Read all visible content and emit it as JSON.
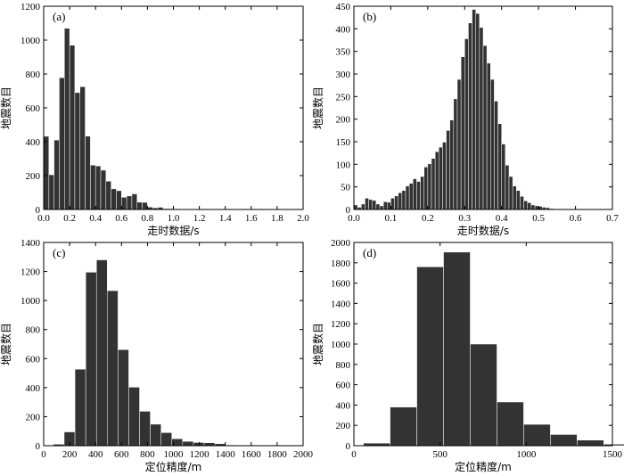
{
  "chart_data": [
    {
      "type": "bar",
      "panel_label": "(a)",
      "xlabel": "走时数据/s",
      "ylabel": "地震数目",
      "xlim": [
        0,
        2.0
      ],
      "ylim": [
        0,
        1200
      ],
      "xticks": [
        0,
        0.2,
        0.4,
        0.6,
        0.8,
        1.0,
        1.2,
        1.4,
        1.6,
        1.8,
        2.0
      ],
      "xtick_labels": [
        "0.0",
        "0.2",
        "0.4",
        "0.6",
        "0.8",
        "1.0",
        "1.2",
        "1.4",
        "1.6",
        "1.8",
        "2.0"
      ],
      "yticks": [
        0,
        200,
        400,
        600,
        800,
        1000,
        1200
      ],
      "ytick_labels": [
        "0",
        "200",
        "400",
        "600",
        "800",
        "1000",
        "1200"
      ],
      "bin_width": 0.04,
      "bin_start": 0,
      "values": [
        432,
        205,
        410,
        778,
        1070,
        970,
        690,
        725,
        433,
        262,
        257,
        232,
        167,
        122,
        111,
        72,
        80,
        92,
        43,
        42,
        14,
        10,
        13,
        5,
        5,
        3,
        2,
        1,
        1,
        2
      ]
    },
    {
      "type": "bar",
      "panel_label": "(b)",
      "xlabel": "走时数据/s",
      "ylabel": "地震数目",
      "xlim": [
        0,
        0.7
      ],
      "ylim": [
        0,
        450
      ],
      "xticks": [
        0,
        0.1,
        0.2,
        0.3,
        0.4,
        0.5,
        0.6,
        0.7
      ],
      "xtick_labels": [
        "0.0",
        "0.1",
        "0.2",
        "0.3",
        "0.4",
        "0.5",
        "0.6",
        "0.7"
      ],
      "yticks": [
        0,
        50,
        100,
        150,
        200,
        250,
        300,
        350,
        400,
        450
      ],
      "ytick_labels": [
        "0",
        "50",
        "100",
        "150",
        "200",
        "250",
        "300",
        "350",
        "400",
        "450"
      ],
      "bin_width": 0.01,
      "bin_start": 0,
      "values": [
        10,
        5,
        12,
        25,
        22,
        20,
        12,
        8,
        17,
        16,
        25,
        30,
        37,
        42,
        52,
        58,
        68,
        62,
        73,
        94,
        101,
        113,
        128,
        138,
        149,
        175,
        198,
        245,
        288,
        338,
        378,
        413,
        443,
        434,
        403,
        363,
        324,
        288,
        240,
        190,
        145,
        98,
        73,
        52,
        42,
        29,
        19,
        15,
        10,
        8,
        7,
        5,
        4,
        2,
        1,
        1,
        1
      ]
    },
    {
      "type": "bar",
      "panel_label": "(c)",
      "xlabel": "定位精度/m",
      "ylabel": "地震数目",
      "xlim": [
        0,
        2000
      ],
      "ylim": [
        0,
        1400
      ],
      "xticks": [
        0,
        200,
        400,
        600,
        800,
        1000,
        1200,
        1400,
        1600,
        1800,
        2000
      ],
      "xtick_labels": [
        "0",
        "200",
        "400",
        "600",
        "800",
        "1000",
        "1200",
        "1400",
        "1600",
        "1800",
        "2000"
      ],
      "yticks": [
        0,
        200,
        400,
        600,
        800,
        1000,
        1200,
        1400
      ],
      "ytick_labels": [
        "0",
        "200",
        "400",
        "600",
        "800",
        "1000",
        "1200",
        "1400"
      ],
      "bin_width": 83,
      "bin_start": 75,
      "values": [
        10,
        95,
        527,
        1195,
        1280,
        1068,
        662,
        403,
        237,
        148,
        90,
        48,
        30,
        22,
        20,
        14,
        5
      ]
    },
    {
      "type": "bar",
      "panel_label": "(d)",
      "xlabel": "定位精度/m",
      "ylabel": "地震数目",
      "xlim": [
        0,
        1500
      ],
      "ylim": [
        0,
        2000
      ],
      "xticks": [
        0,
        500,
        1000,
        1500
      ],
      "xtick_labels": [
        "0",
        "500",
        "1000",
        "1500"
      ],
      "yticks": [
        0,
        200,
        400,
        600,
        800,
        1000,
        1200,
        1400,
        1600,
        1800,
        2000
      ],
      "ytick_labels": [
        "0",
        "200",
        "400",
        "600",
        "800",
        "1000",
        "1200",
        "1400",
        "1600",
        "1800",
        "2000"
      ],
      "bin_width": 155,
      "bin_start": 55,
      "values": [
        25,
        380,
        1760,
        1905,
        1000,
        430,
        210,
        110,
        55,
        15
      ]
    }
  ]
}
